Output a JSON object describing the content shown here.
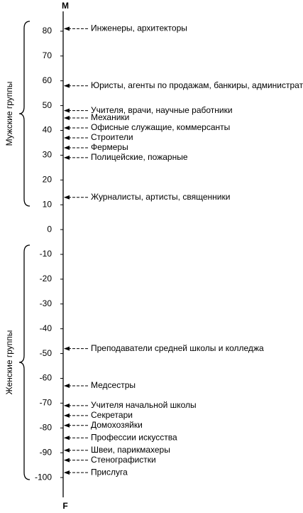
{
  "chart_data": {
    "type": "scale",
    "top_label": "M",
    "bottom_label": "F",
    "groups": [
      "Мужские группы",
      "Женские группы"
    ],
    "categories": [
      "Инженеры, архитекторы",
      "Юристы, агенты по продажам, банкиры, администраторы",
      "Учителя, врачи, научные работники",
      "Механики",
      "Офисные служащие, коммерсанты",
      "Строители",
      "Фермеры",
      "Полицейские, пожарные",
      "Журналисты, артисты, священники",
      "Преподаватели средней школы и колледжа",
      "Медсестры",
      "Учителя начальной школы",
      "Секретари",
      "Домохозяйки",
      "Профессии искусства",
      "Швеи, парикмахеры",
      "Стенографистки",
      "Прислуга"
    ],
    "values": [
      81,
      58,
      48,
      45,
      41,
      37,
      33,
      29,
      13,
      -48,
      -63,
      -71,
      -75,
      -79,
      -84,
      -89,
      -93,
      -98
    ],
    "ylim": [
      -108,
      88
    ],
    "yticks": [
      80,
      70,
      60,
      50,
      40,
      30,
      20,
      10,
      0,
      -10,
      -20,
      -30,
      -40,
      -50,
      -60,
      -70,
      -80,
      -90,
      -100
    ],
    "color": "#000000"
  }
}
